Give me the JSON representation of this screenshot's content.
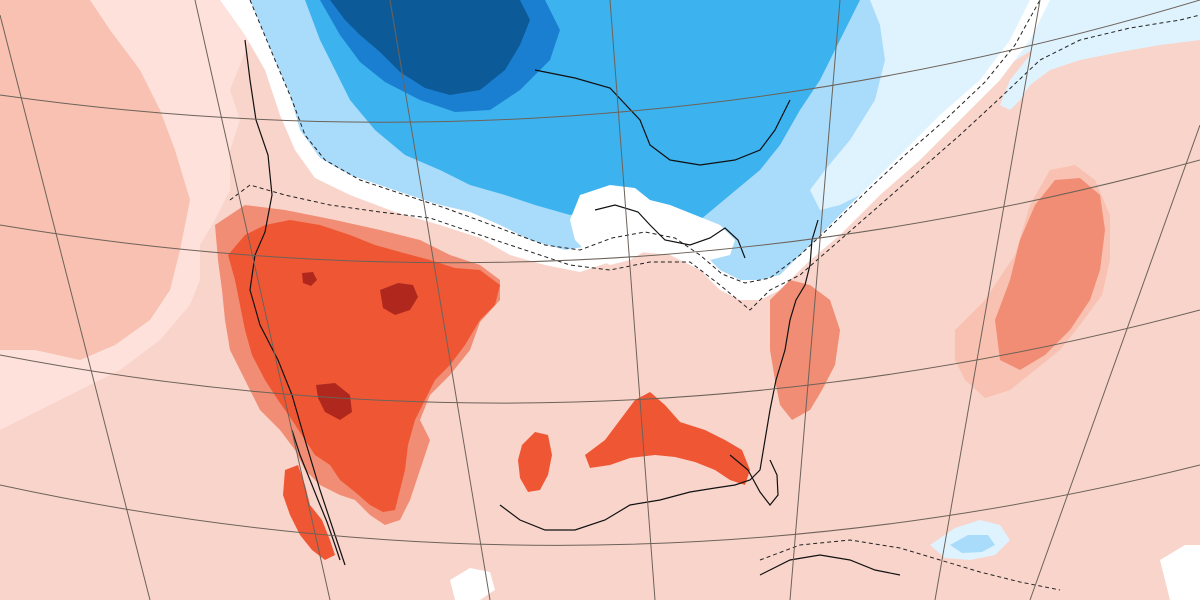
{
  "map": {
    "type": "temperature-anomaly-map",
    "region": "North America",
    "colors": {
      "background_white": "#ffffff",
      "warm_1": "#fde1da",
      "warm_2": "#f8c1b1",
      "warm_3": "#f08d74",
      "warm_4": "#ef5734",
      "warm_5": "#b0271d",
      "cool_1": "#dff3ff",
      "cool_2": "#a9dcfa",
      "cool_3": "#3cb2ef",
      "cool_4": "#1b7fd1",
      "cool_5": "#0d5a98",
      "coastline": "#111111",
      "graticule": "#6d6259",
      "contour_dashed": "#222222"
    },
    "features": {
      "coastlines": true,
      "graticule": true,
      "dashed_zero_contour": true,
      "lakes_outlined": true
    }
  }
}
